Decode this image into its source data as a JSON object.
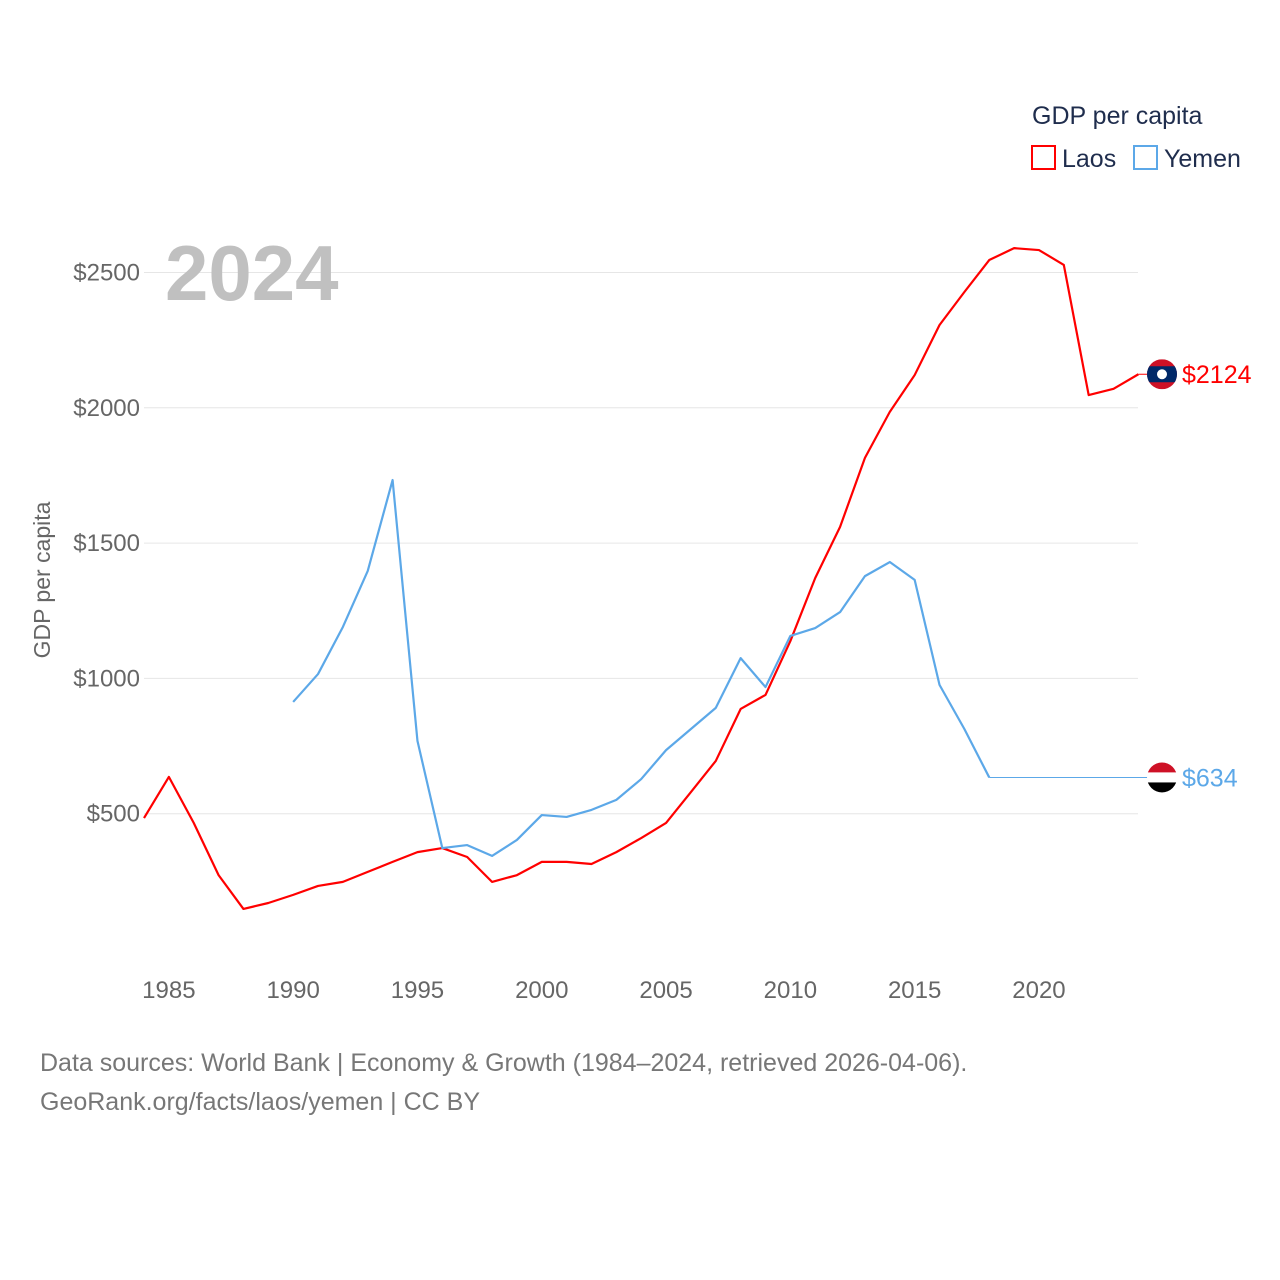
{
  "chart_data": {
    "type": "line",
    "title": "GDP per capita",
    "year_label": "2024",
    "ylabel": "GDP per capita",
    "xlabel": "",
    "xlim": [
      1984,
      2024
    ],
    "ylim": [
      0,
      2800
    ],
    "x_ticks": [
      "1985",
      "1990",
      "1995",
      "2000",
      "2005",
      "2010",
      "2015",
      "2020"
    ],
    "y_ticks": [
      {
        "value": 500,
        "label": "$500"
      },
      {
        "value": 1000,
        "label": "$1000"
      },
      {
        "value": 1500,
        "label": "$1500"
      },
      {
        "value": 2000,
        "label": "$2000"
      },
      {
        "value": 2500,
        "label": "$2500"
      }
    ],
    "grid": true,
    "legend_placement": "top-right",
    "series": [
      {
        "name": "Laos",
        "color": "#ff0000",
        "end_label": "$2124",
        "flag": "laos-flag",
        "x": [
          1984,
          1985,
          1986,
          1987,
          1988,
          1989,
          1990,
          1991,
          1992,
          1993,
          1994,
          1995,
          1996,
          1997,
          1998,
          1999,
          2000,
          2001,
          2002,
          2003,
          2004,
          2005,
          2006,
          2007,
          2008,
          2009,
          2010,
          2011,
          2012,
          2013,
          2014,
          2015,
          2016,
          2017,
          2018,
          2019,
          2020,
          2021,
          2022,
          2023,
          2024
        ],
        "values": [
          484,
          636,
          466,
          273,
          148,
          170,
          200,
          233,
          248,
          285,
          322,
          358,
          373,
          340,
          248,
          273,
          322,
          322,
          314,
          358,
          410,
          466,
          580,
          695,
          887,
          939,
          1138,
          1371,
          1560,
          1815,
          1985,
          2121,
          2306,
          2428,
          2546,
          2590,
          2583,
          2528,
          2047,
          2070,
          2124
        ]
      },
      {
        "name": "Yemen",
        "color": "#5ca8e8",
        "end_label": "$634",
        "flag": "yemen-flag",
        "x": [
          1990,
          1991,
          1992,
          1993,
          1994,
          1995,
          1996,
          1997,
          1998,
          1999,
          2000,
          2001,
          2002,
          2003,
          2004,
          2005,
          2006,
          2007,
          2008,
          2009,
          2010,
          2011,
          2012,
          2013,
          2014,
          2015,
          2016,
          2017,
          2018
        ],
        "values": [
          913,
          1016,
          1190,
          1397,
          1733,
          769,
          373,
          384,
          344,
          403,
          495,
          488,
          514,
          551,
          628,
          735,
          813,
          891,
          1075,
          968,
          1157,
          1186,
          1245,
          1378,
          1430,
          1364,
          976,
          813,
          634
        ]
      }
    ]
  },
  "source": {
    "line1": "Data sources: World Bank | Economy & Growth (1984–2024, retrieved 2026-04-06).",
    "line2": "GeoRank.org/facts/laos/yemen | CC BY"
  }
}
